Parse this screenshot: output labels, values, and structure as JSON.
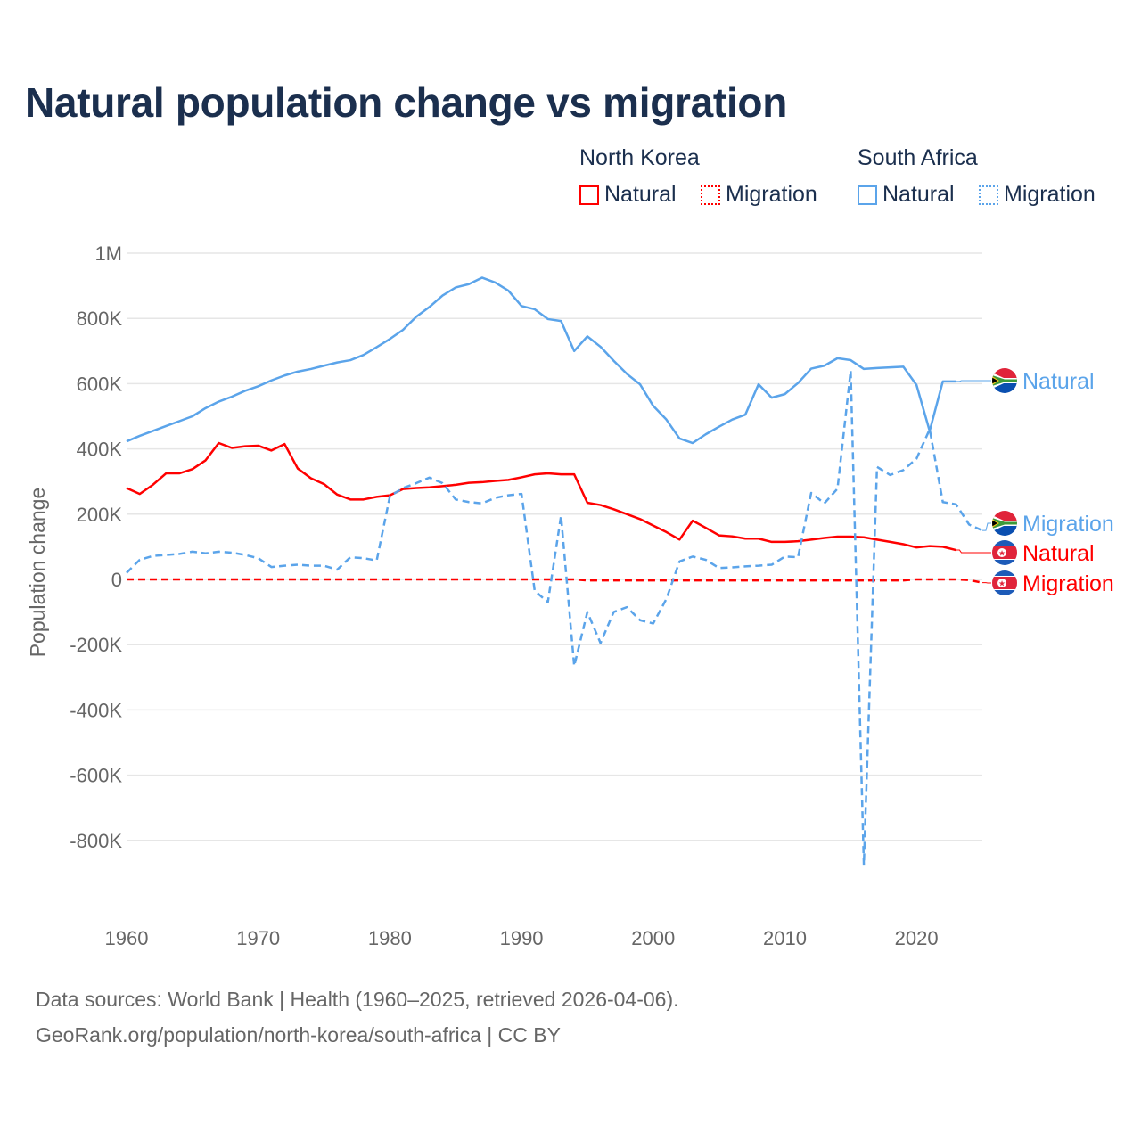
{
  "title": "Natural population change vs migration",
  "legend": {
    "groups": [
      {
        "country": "North Korea",
        "items": [
          {
            "label": "Natural",
            "style": "solid"
          },
          {
            "label": "Migration",
            "style": "dotted"
          }
        ],
        "color": "#ff0000"
      },
      {
        "country": "South Africa",
        "items": [
          {
            "label": "Natural",
            "style": "solid"
          },
          {
            "label": "Migration",
            "style": "dotted"
          }
        ],
        "color": "#5ba4ea"
      }
    ]
  },
  "footer": {
    "line1": "Data sources: World Bank | Health (1960–2025, retrieved 2026-04-06).",
    "line2": "GeoRank.org/population/north-korea/south-africa | CC BY"
  },
  "chart_data": {
    "type": "line",
    "title": "Natural population change vs migration",
    "xlabel": "",
    "ylabel": "Population change",
    "xlim": [
      1960,
      2025
    ],
    "ylim": [
      -950000,
      1000000
    ],
    "x_ticks": [
      1960,
      1970,
      1980,
      1990,
      2000,
      2010,
      2020
    ],
    "x_tick_labels": [
      "1960",
      "1970",
      "1980",
      "1990",
      "2000",
      "2010",
      "2020"
    ],
    "y_ticks": [
      1000000,
      800000,
      600000,
      400000,
      200000,
      0,
      -200000,
      -400000,
      -600000,
      -800000
    ],
    "y_tick_labels": [
      "1M",
      "800K",
      "600K",
      "400K",
      "200K",
      "0",
      "-200K",
      "-400K",
      "-600K",
      "-800K"
    ],
    "grid": true,
    "legend_position": "top-right",
    "units": "thousands",
    "series": [
      {
        "name": "South Africa Natural",
        "end_label": "Natural",
        "country": "South Africa",
        "color": "#5ba4ea",
        "dash": false,
        "start": 1960,
        "values": [
          423,
          440,
          455,
          470,
          485,
          500,
          525,
          545,
          560,
          578,
          592,
          610,
          625,
          637,
          645,
          655,
          665,
          672,
          688,
          712,
          737,
          765,
          805,
          835,
          870,
          895,
          905,
          925,
          910,
          885,
          838,
          828,
          798,
          792,
          700,
          745,
          713,
          670,
          630,
          598,
          532,
          490,
          432,
          418,
          445,
          468,
          490,
          505,
          598,
          557,
          568,
          602,
          646,
          655,
          678,
          672,
          645,
          648,
          650,
          652,
          596,
          455,
          607,
          607
        ]
      },
      {
        "name": "South Africa Migration",
        "end_label": "Migration",
        "country": "South Africa",
        "color": "#5ba4ea",
        "dash": true,
        "start": 1960,
        "values": [
          20,
          60,
          72,
          75,
          78,
          85,
          80,
          85,
          82,
          75,
          65,
          38,
          42,
          45,
          42,
          42,
          30,
          68,
          65,
          58,
          255,
          280,
          295,
          312,
          295,
          245,
          237,
          233,
          250,
          258,
          262,
          -35,
          -70,
          195,
          -265,
          -100,
          -195,
          -100,
          -85,
          -125,
          -135,
          -60,
          55,
          70,
          60,
          35,
          37,
          40,
          42,
          45,
          70,
          68,
          265,
          233,
          278,
          640,
          -875,
          345,
          320,
          335,
          370,
          460,
          237,
          230,
          168,
          150
        ]
      },
      {
        "name": "North Korea Natural",
        "end_label": "Natural",
        "country": "North Korea",
        "color": "#ff0000",
        "dash": false,
        "start": 1960,
        "values": [
          280,
          262,
          290,
          325,
          325,
          338,
          365,
          418,
          403,
          408,
          410,
          395,
          415,
          340,
          310,
          292,
          260,
          245,
          245,
          253,
          258,
          277,
          280,
          282,
          286,
          290,
          296,
          298,
          302,
          305,
          313,
          322,
          325,
          322,
          322,
          235,
          228,
          215,
          200,
          185,
          165,
          145,
          122,
          180,
          158,
          135,
          132,
          125,
          125,
          115,
          115,
          117,
          122,
          127,
          131,
          131,
          129,
          122,
          115,
          108,
          98,
          102,
          100,
          90
        ]
      },
      {
        "name": "North Korea Migration",
        "end_label": "Migration",
        "country": "North Korea",
        "color": "#ff0000",
        "dash": true,
        "start": 1960,
        "values": [
          0,
          0,
          0,
          0,
          0,
          0,
          0,
          0,
          0,
          0,
          0,
          0,
          0,
          0,
          0,
          0,
          0,
          0,
          0,
          0,
          0,
          0,
          0,
          0,
          0,
          0,
          0,
          0,
          0,
          0,
          0,
          0,
          0,
          0,
          0,
          -3,
          -3,
          -3,
          -3,
          -3,
          -3,
          -3,
          -3,
          -3,
          -3,
          -3,
          -3,
          -3,
          -3,
          -3,
          -3,
          -3,
          -3,
          -3,
          -3,
          -3,
          -3,
          -3,
          -3,
          -3,
          0,
          0,
          0,
          0,
          -2,
          -10
        ]
      }
    ]
  }
}
